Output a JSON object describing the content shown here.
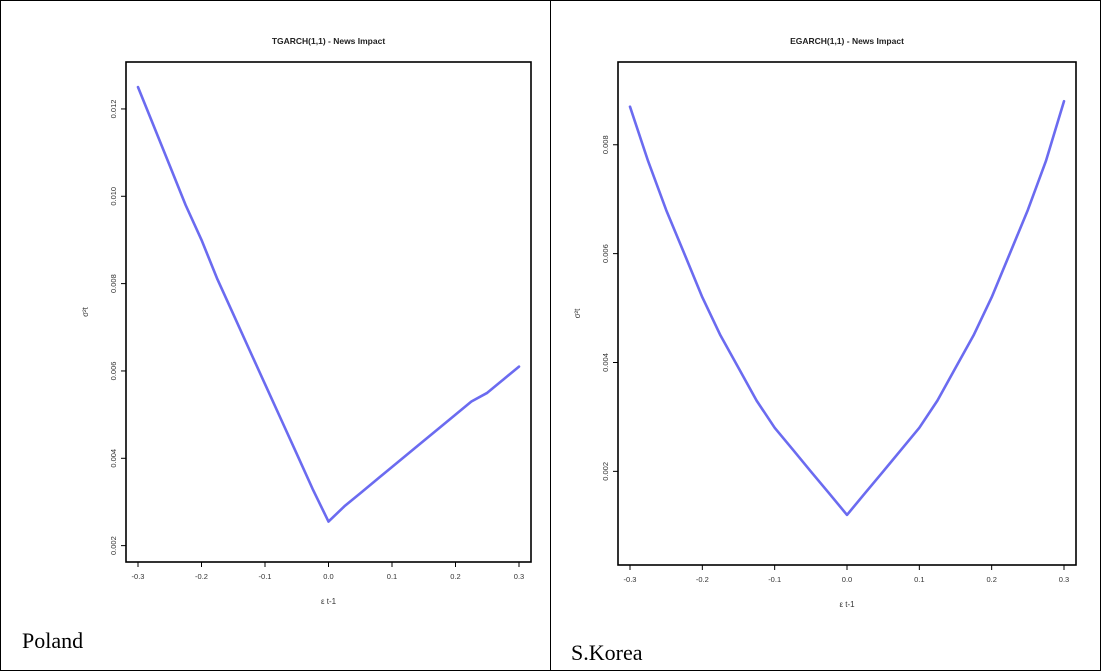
{
  "panels": [
    {
      "country": "Poland"
    },
    {
      "country": "S.Korea"
    }
  ],
  "chart_data": [
    {
      "type": "line",
      "title": "TGARCH(1,1) - News Impact",
      "xlabel": "ε t-1",
      "ylabel": "σ²t",
      "xlim": [
        -0.3,
        0.3
      ],
      "ylim": [
        0.0019,
        0.0128
      ],
      "xticks": [
        -0.3,
        -0.2,
        -0.1,
        0.0,
        0.1,
        0.2,
        0.3
      ],
      "xtick_labels": [
        "-0.3",
        "-0.2",
        "-0.1",
        "0.0",
        "0.1",
        "0.2",
        "0.3"
      ],
      "yticks": [
        0.002,
        0.004,
        0.006,
        0.008,
        0.01,
        0.012
      ],
      "ytick_labels": [
        "0.002",
        "0.004",
        "0.006",
        "0.008",
        "0.010",
        "0.012"
      ],
      "color": "#6b6bf0",
      "series": [
        {
          "x": [
            -0.3,
            -0.275,
            -0.25,
            -0.225,
            -0.2,
            -0.175,
            -0.15,
            -0.125,
            -0.1,
            -0.075,
            -0.05,
            -0.025,
            0.0,
            0.025,
            0.05,
            0.075,
            0.1,
            0.125,
            0.15,
            0.175,
            0.2,
            0.225,
            0.25,
            0.275,
            0.3
          ],
          "values": [
            0.0125,
            0.0116,
            0.0107,
            0.0098,
            0.009,
            0.0081,
            0.0073,
            0.0065,
            0.0057,
            0.0049,
            0.0041,
            0.0033,
            0.00255,
            0.0029,
            0.0032,
            0.0035,
            0.0038,
            0.0041,
            0.0044,
            0.0047,
            0.005,
            0.0053,
            0.0055,
            0.0058,
            0.0061
          ]
        }
      ]
    },
    {
      "type": "line",
      "title": "EGARCH(1,1) - News Impact",
      "xlabel": "ε t-1",
      "ylabel": "σ²t",
      "xlim": [
        -0.3,
        0.3
      ],
      "ylim": [
        0.0005,
        0.0093
      ],
      "xticks": [
        -0.3,
        -0.2,
        -0.1,
        0.0,
        0.1,
        0.2,
        0.3
      ],
      "xtick_labels": [
        "-0.3",
        "-0.2",
        "-0.1",
        "0.0",
        "0.1",
        "0.2",
        "0.3"
      ],
      "yticks": [
        0.002,
        0.004,
        0.006,
        0.008
      ],
      "ytick_labels": [
        "0.002",
        "0.004",
        "0.006",
        "0.008"
      ],
      "color": "#6b6bf0",
      "series": [
        {
          "x": [
            -0.3,
            -0.275,
            -0.25,
            -0.225,
            -0.2,
            -0.175,
            -0.15,
            -0.125,
            -0.1,
            -0.075,
            -0.05,
            -0.025,
            0.0,
            0.025,
            0.05,
            0.075,
            0.1,
            0.125,
            0.15,
            0.175,
            0.2,
            0.225,
            0.25,
            0.275,
            0.3
          ],
          "values": [
            0.0087,
            0.0077,
            0.0068,
            0.006,
            0.0052,
            0.0045,
            0.0039,
            0.0033,
            0.0028,
            0.0024,
            0.002,
            0.0016,
            0.0012,
            0.0016,
            0.002,
            0.0024,
            0.0028,
            0.0033,
            0.0039,
            0.0045,
            0.0052,
            0.006,
            0.0068,
            0.0077,
            0.0088
          ]
        }
      ]
    }
  ]
}
